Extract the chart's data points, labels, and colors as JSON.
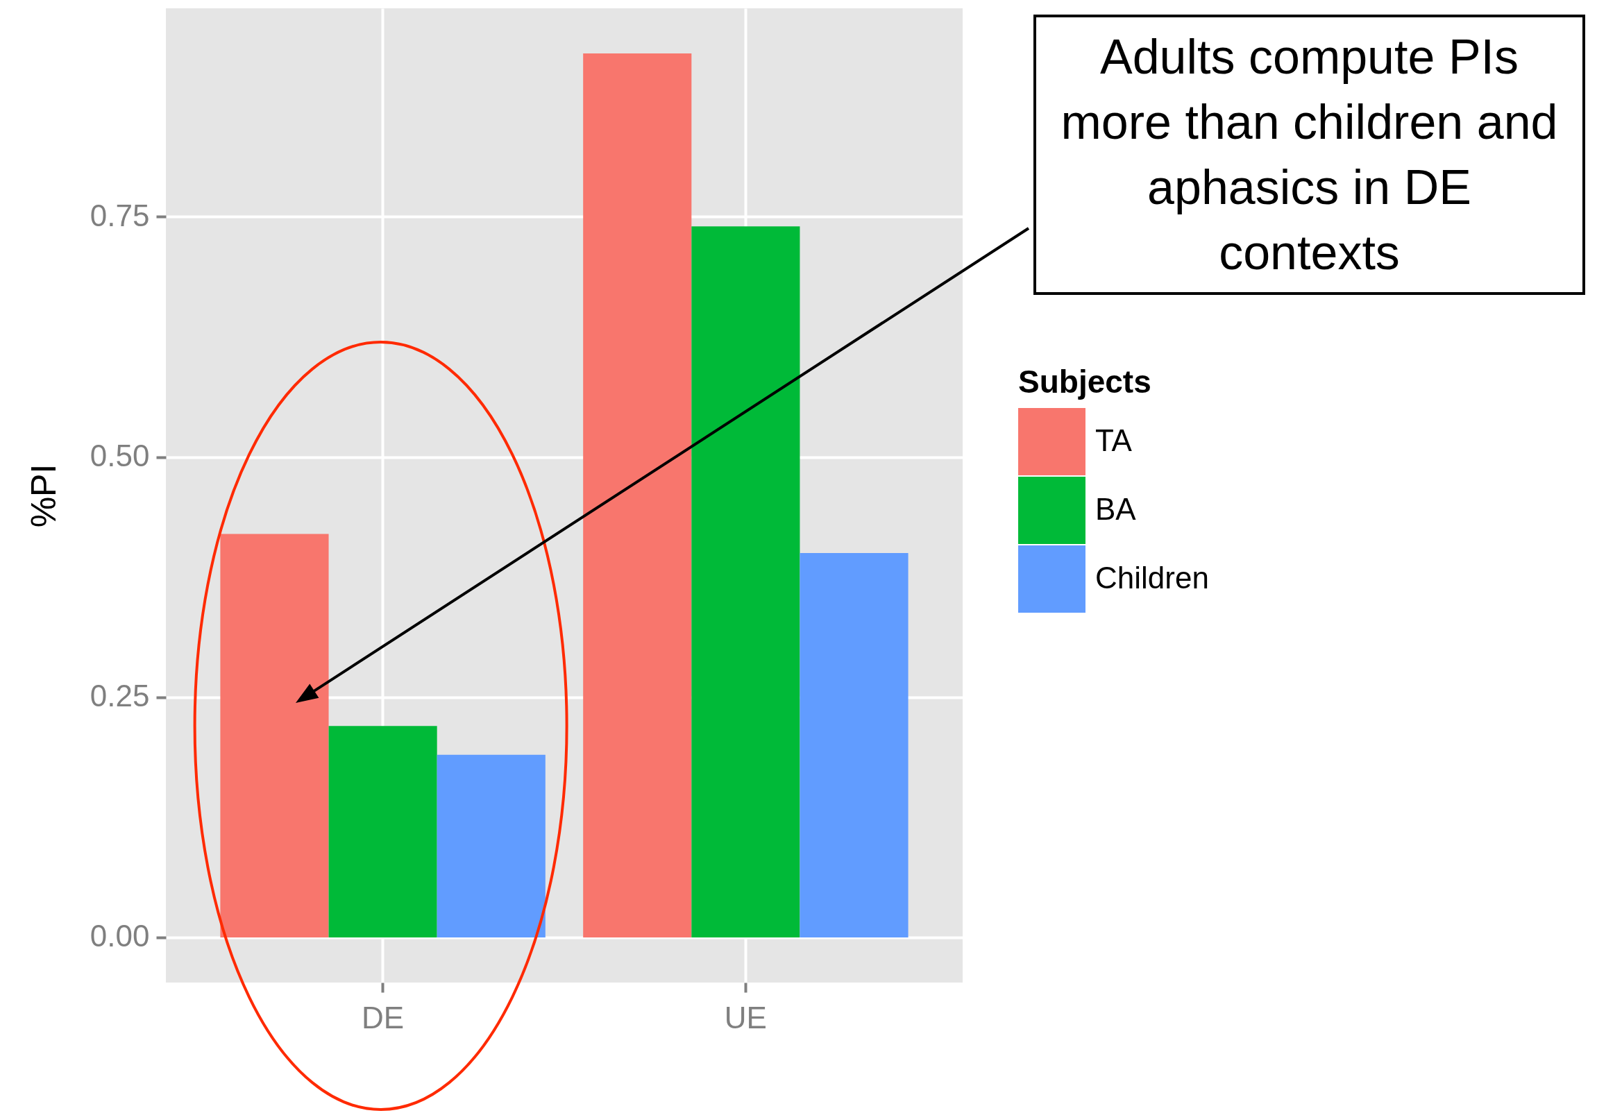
{
  "chart_data": {
    "type": "bar",
    "categories": [
      "DE",
      "UE"
    ],
    "series": [
      {
        "name": "TA",
        "color": "#f8766d",
        "values": [
          0.42,
          0.92
        ]
      },
      {
        "name": "BA",
        "color": "#00ba38",
        "values": [
          0.22,
          0.74
        ]
      },
      {
        "name": "Children",
        "color": "#619cff",
        "values": [
          0.19,
          0.4
        ]
      }
    ],
    "ylabel": "%PI",
    "legend_title": "Subjects",
    "legend": "right",
    "grid": true,
    "ylim": [
      -0.047,
      0.967
    ],
    "yticks": [
      {
        "value": 0,
        "label": "0.00"
      },
      {
        "value": 0.25,
        "label": "0.25"
      },
      {
        "value": 0.5,
        "label": "0.50"
      },
      {
        "value": 0.75,
        "label": "0.75"
      }
    ],
    "annotations": [
      "Adults compute PIs more than children and aphasics in DE contexts"
    ]
  }
}
